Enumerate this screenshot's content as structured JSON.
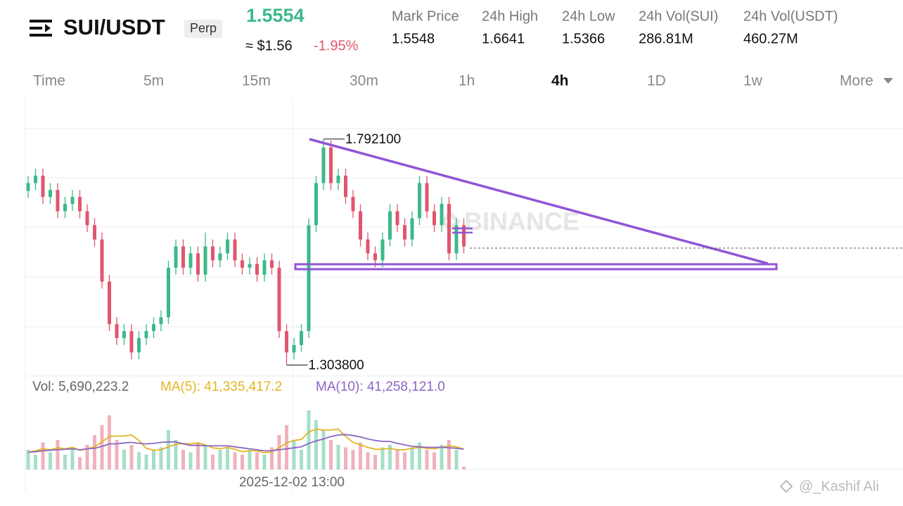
{
  "header": {
    "pair": "SUI/USDT",
    "badge": "Perp",
    "last_price": "1.5554",
    "approx_price": "≈ $1.56",
    "change": "-1.95%",
    "stats": [
      {
        "label": "Mark Price",
        "value": "1.5548"
      },
      {
        "label": "24h High",
        "value": "1.6641"
      },
      {
        "label": "24h Low",
        "value": "1.5366"
      },
      {
        "label": "24h Vol(SUI)",
        "value": "286.81M"
      },
      {
        "label": "24h Vol(USDT)",
        "value": "460.27M"
      }
    ]
  },
  "tabs": {
    "items": [
      "Time",
      "5m",
      "15m",
      "30m",
      "1h",
      "4h",
      "1D",
      "1w",
      "More"
    ],
    "active": "4h"
  },
  "chart_data": {
    "type": "candlestick",
    "ylim": [
      1.28,
      1.88
    ],
    "up_color": "#3cb98a",
    "down_color": "#e0566c",
    "open": [
      1.68,
      1.697,
      1.713,
      1.667,
      1.682,
      1.636,
      1.652,
      1.667,
      1.636,
      1.606,
      1.575,
      1.484,
      1.392,
      1.362,
      1.377,
      1.331,
      1.362,
      1.377,
      1.392,
      1.407,
      1.514,
      1.56,
      1.514,
      1.545,
      1.499,
      1.56,
      1.53,
      1.545,
      1.575,
      1.53,
      1.514,
      1.522,
      1.499,
      1.53,
      1.514,
      1.377,
      1.331,
      1.347,
      1.377,
      1.606,
      1.697,
      1.774,
      1.697,
      1.713,
      1.667,
      1.636,
      1.575,
      1.545,
      1.53,
      1.575,
      1.636,
      1.606,
      1.575,
      1.621,
      1.697,
      1.636,
      1.606,
      1.652,
      1.545,
      1.606
    ],
    "high": [
      1.712,
      1.728,
      1.728,
      1.697,
      1.697,
      1.667,
      1.682,
      1.682,
      1.651,
      1.621,
      1.59,
      1.499,
      1.407,
      1.392,
      1.392,
      1.377,
      1.392,
      1.407,
      1.422,
      1.529,
      1.575,
      1.575,
      1.56,
      1.56,
      1.59,
      1.575,
      1.56,
      1.59,
      1.59,
      1.545,
      1.537,
      1.537,
      1.545,
      1.545,
      1.529,
      1.392,
      1.362,
      1.392,
      1.621,
      1.712,
      1.7921,
      1.789,
      1.728,
      1.728,
      1.682,
      1.651,
      1.59,
      1.56,
      1.59,
      1.651,
      1.651,
      1.621,
      1.636,
      1.712,
      1.712,
      1.651,
      1.667,
      1.667,
      1.621,
      1.621
    ],
    "low": [
      1.665,
      1.682,
      1.652,
      1.652,
      1.621,
      1.621,
      1.637,
      1.621,
      1.591,
      1.56,
      1.469,
      1.377,
      1.347,
      1.347,
      1.316,
      1.316,
      1.347,
      1.362,
      1.377,
      1.392,
      1.499,
      1.499,
      1.499,
      1.484,
      1.484,
      1.515,
      1.515,
      1.53,
      1.515,
      1.499,
      1.499,
      1.484,
      1.484,
      1.499,
      1.362,
      1.3038,
      1.316,
      1.332,
      1.362,
      1.591,
      1.682,
      1.682,
      1.682,
      1.652,
      1.621,
      1.56,
      1.53,
      1.515,
      1.515,
      1.56,
      1.591,
      1.56,
      1.56,
      1.606,
      1.621,
      1.591,
      1.591,
      1.53,
      1.53,
      1.545
    ],
    "close": [
      1.697,
      1.713,
      1.667,
      1.682,
      1.636,
      1.652,
      1.667,
      1.636,
      1.606,
      1.575,
      1.484,
      1.392,
      1.362,
      1.377,
      1.331,
      1.362,
      1.377,
      1.392,
      1.407,
      1.514,
      1.56,
      1.514,
      1.545,
      1.499,
      1.56,
      1.53,
      1.545,
      1.575,
      1.53,
      1.514,
      1.522,
      1.499,
      1.53,
      1.514,
      1.377,
      1.331,
      1.347,
      1.377,
      1.606,
      1.697,
      1.774,
      1.697,
      1.713,
      1.667,
      1.636,
      1.575,
      1.545,
      1.53,
      1.575,
      1.636,
      1.606,
      1.575,
      1.621,
      1.697,
      1.636,
      1.606,
      1.652,
      1.545,
      1.606,
      1.56
    ],
    "annotations": [
      {
        "value": 1.7921,
        "label": "1.792100",
        "edge": "high"
      },
      {
        "value": 1.3038,
        "label": "1.303800",
        "edge": "low"
      }
    ],
    "x_label": "2025-12-02 13:00",
    "watermark": "BINANCE",
    "volume": {
      "label": "Vol: 5,690,223.2",
      "ylim": [
        0,
        140000000
      ],
      "values": [
        40000000,
        30000000,
        55000000,
        35000000,
        60000000,
        30000000,
        45000000,
        25000000,
        50000000,
        70000000,
        90000000,
        110000000,
        60000000,
        40000000,
        50000000,
        35000000,
        30000000,
        40000000,
        45000000,
        80000000,
        60000000,
        40000000,
        35000000,
        55000000,
        50000000,
        30000000,
        40000000,
        45000000,
        35000000,
        30000000,
        40000000,
        35000000,
        30000000,
        45000000,
        70000000,
        90000000,
        60000000,
        40000000,
        120000000,
        100000000,
        80000000,
        60000000,
        50000000,
        45000000,
        40000000,
        55000000,
        35000000,
        30000000,
        45000000,
        50000000,
        40000000,
        35000000,
        45000000,
        55000000,
        40000000,
        35000000,
        50000000,
        60000000,
        40000000,
        5690223.2
      ],
      "series": [
        {
          "name": "MA(5): 41,335,417.2",
          "color": "#e2b521",
          "values": [
            35000000,
            38000000,
            42000000,
            40000000,
            44000000,
            42000000,
            45000000,
            39000000,
            42000000,
            46000000,
            56000000,
            67000000,
            68000000,
            68000000,
            70000000,
            59000000,
            43000000,
            39000000,
            40000000,
            46000000,
            51000000,
            53000000,
            52000000,
            54000000,
            50000000,
            44000000,
            42000000,
            45000000,
            41000000,
            36000000,
            38000000,
            38000000,
            34000000,
            36000000,
            44000000,
            54000000,
            59000000,
            61000000,
            76000000,
            82000000,
            80000000,
            80000000,
            82000000,
            67000000,
            55000000,
            50000000,
            45000000,
            41000000,
            41000000,
            43000000,
            40000000,
            40000000,
            43000000,
            45000000,
            43000000,
            42000000,
            45000000,
            48000000,
            46000000,
            41335417.2
          ]
        },
        {
          "name": "MA(10): 41,258,121.0",
          "color": "#8c66c4",
          "values": [
            35000000,
            36000000,
            38000000,
            39000000,
            40000000,
            41000000,
            42000000,
            40000000,
            42000000,
            43000000,
            47000000,
            52000000,
            52000000,
            54000000,
            55000000,
            53000000,
            52000000,
            53000000,
            55000000,
            56000000,
            56000000,
            52000000,
            49000000,
            49000000,
            48000000,
            48000000,
            48000000,
            48000000,
            46000000,
            44000000,
            42000000,
            40000000,
            38000000,
            38000000,
            40000000,
            42000000,
            44000000,
            46000000,
            53000000,
            58000000,
            62000000,
            67000000,
            70000000,
            71000000,
            69000000,
            66000000,
            62000000,
            59000000,
            57000000,
            57000000,
            53000000,
            50000000,
            47000000,
            46000000,
            45000000,
            45000000,
            45000000,
            44000000,
            43000000,
            41258121.0
          ]
        }
      ]
    }
  },
  "credit": "@_Kashif Ali"
}
